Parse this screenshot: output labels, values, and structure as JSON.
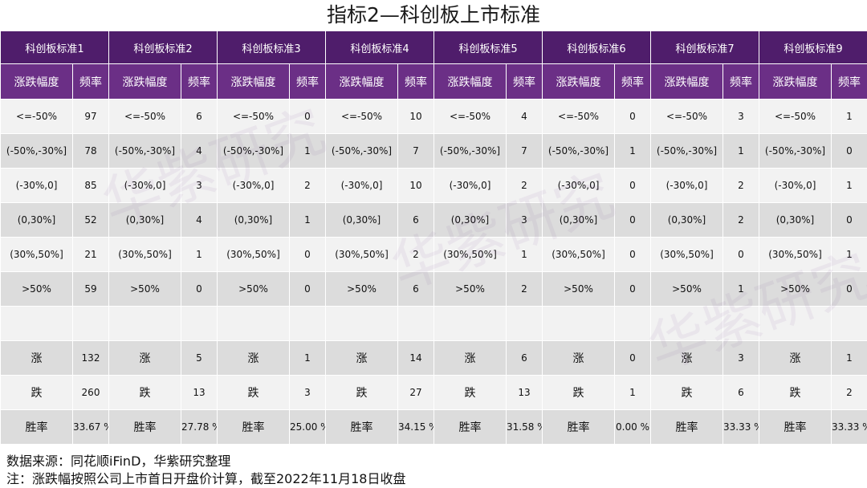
{
  "title": "指标2—科创板上市标准",
  "standards": [
    "科创板标准1",
    "科创板标准2",
    "科创板标准3",
    "科创板标准4",
    "科创板标准5",
    "科创板标准6",
    "科创板标准7",
    "科创板标准9"
  ],
  "sub_headers": {
    "range": "涨跌幅度",
    "freq": "频率"
  },
  "range_labels": [
    "<=-50%",
    "(-50%,-30%]",
    "(-30%,0]",
    "(0,30%]",
    "(30%,50%]",
    ">50%"
  ],
  "freq_values": [
    [
      97,
      78,
      85,
      52,
      21,
      59
    ],
    [
      6,
      4,
      3,
      4,
      1,
      0
    ],
    [
      0,
      1,
      2,
      1,
      0,
      0
    ],
    [
      10,
      7,
      10,
      6,
      2,
      6
    ],
    [
      4,
      7,
      2,
      3,
      1,
      2
    ],
    [
      0,
      1,
      0,
      0,
      0,
      0
    ],
    [
      3,
      1,
      2,
      2,
      0,
      1
    ],
    [
      1,
      0,
      1,
      0,
      1,
      0
    ]
  ],
  "summary_labels": {
    "up": "涨",
    "down": "跌",
    "winrate": "胜率"
  },
  "up_counts": [
    132,
    5,
    1,
    14,
    6,
    0,
    3,
    1
  ],
  "down_counts": [
    260,
    13,
    3,
    27,
    13,
    1,
    6,
    2
  ],
  "win_rates": [
    "33.67 %",
    "27.78 %",
    "25.00 %",
    "34.15 %",
    "31.58 %",
    "0.00 %",
    "33.33 %",
    "33.33 %"
  ],
  "watermark": "华紫研究",
  "footer": {
    "source": "数据来源：同花顺iFinD，华紫研究整理",
    "note": "注：涨跌幅按照公司上市首日开盘价计算，截至2022年11月18日收盘"
  }
}
